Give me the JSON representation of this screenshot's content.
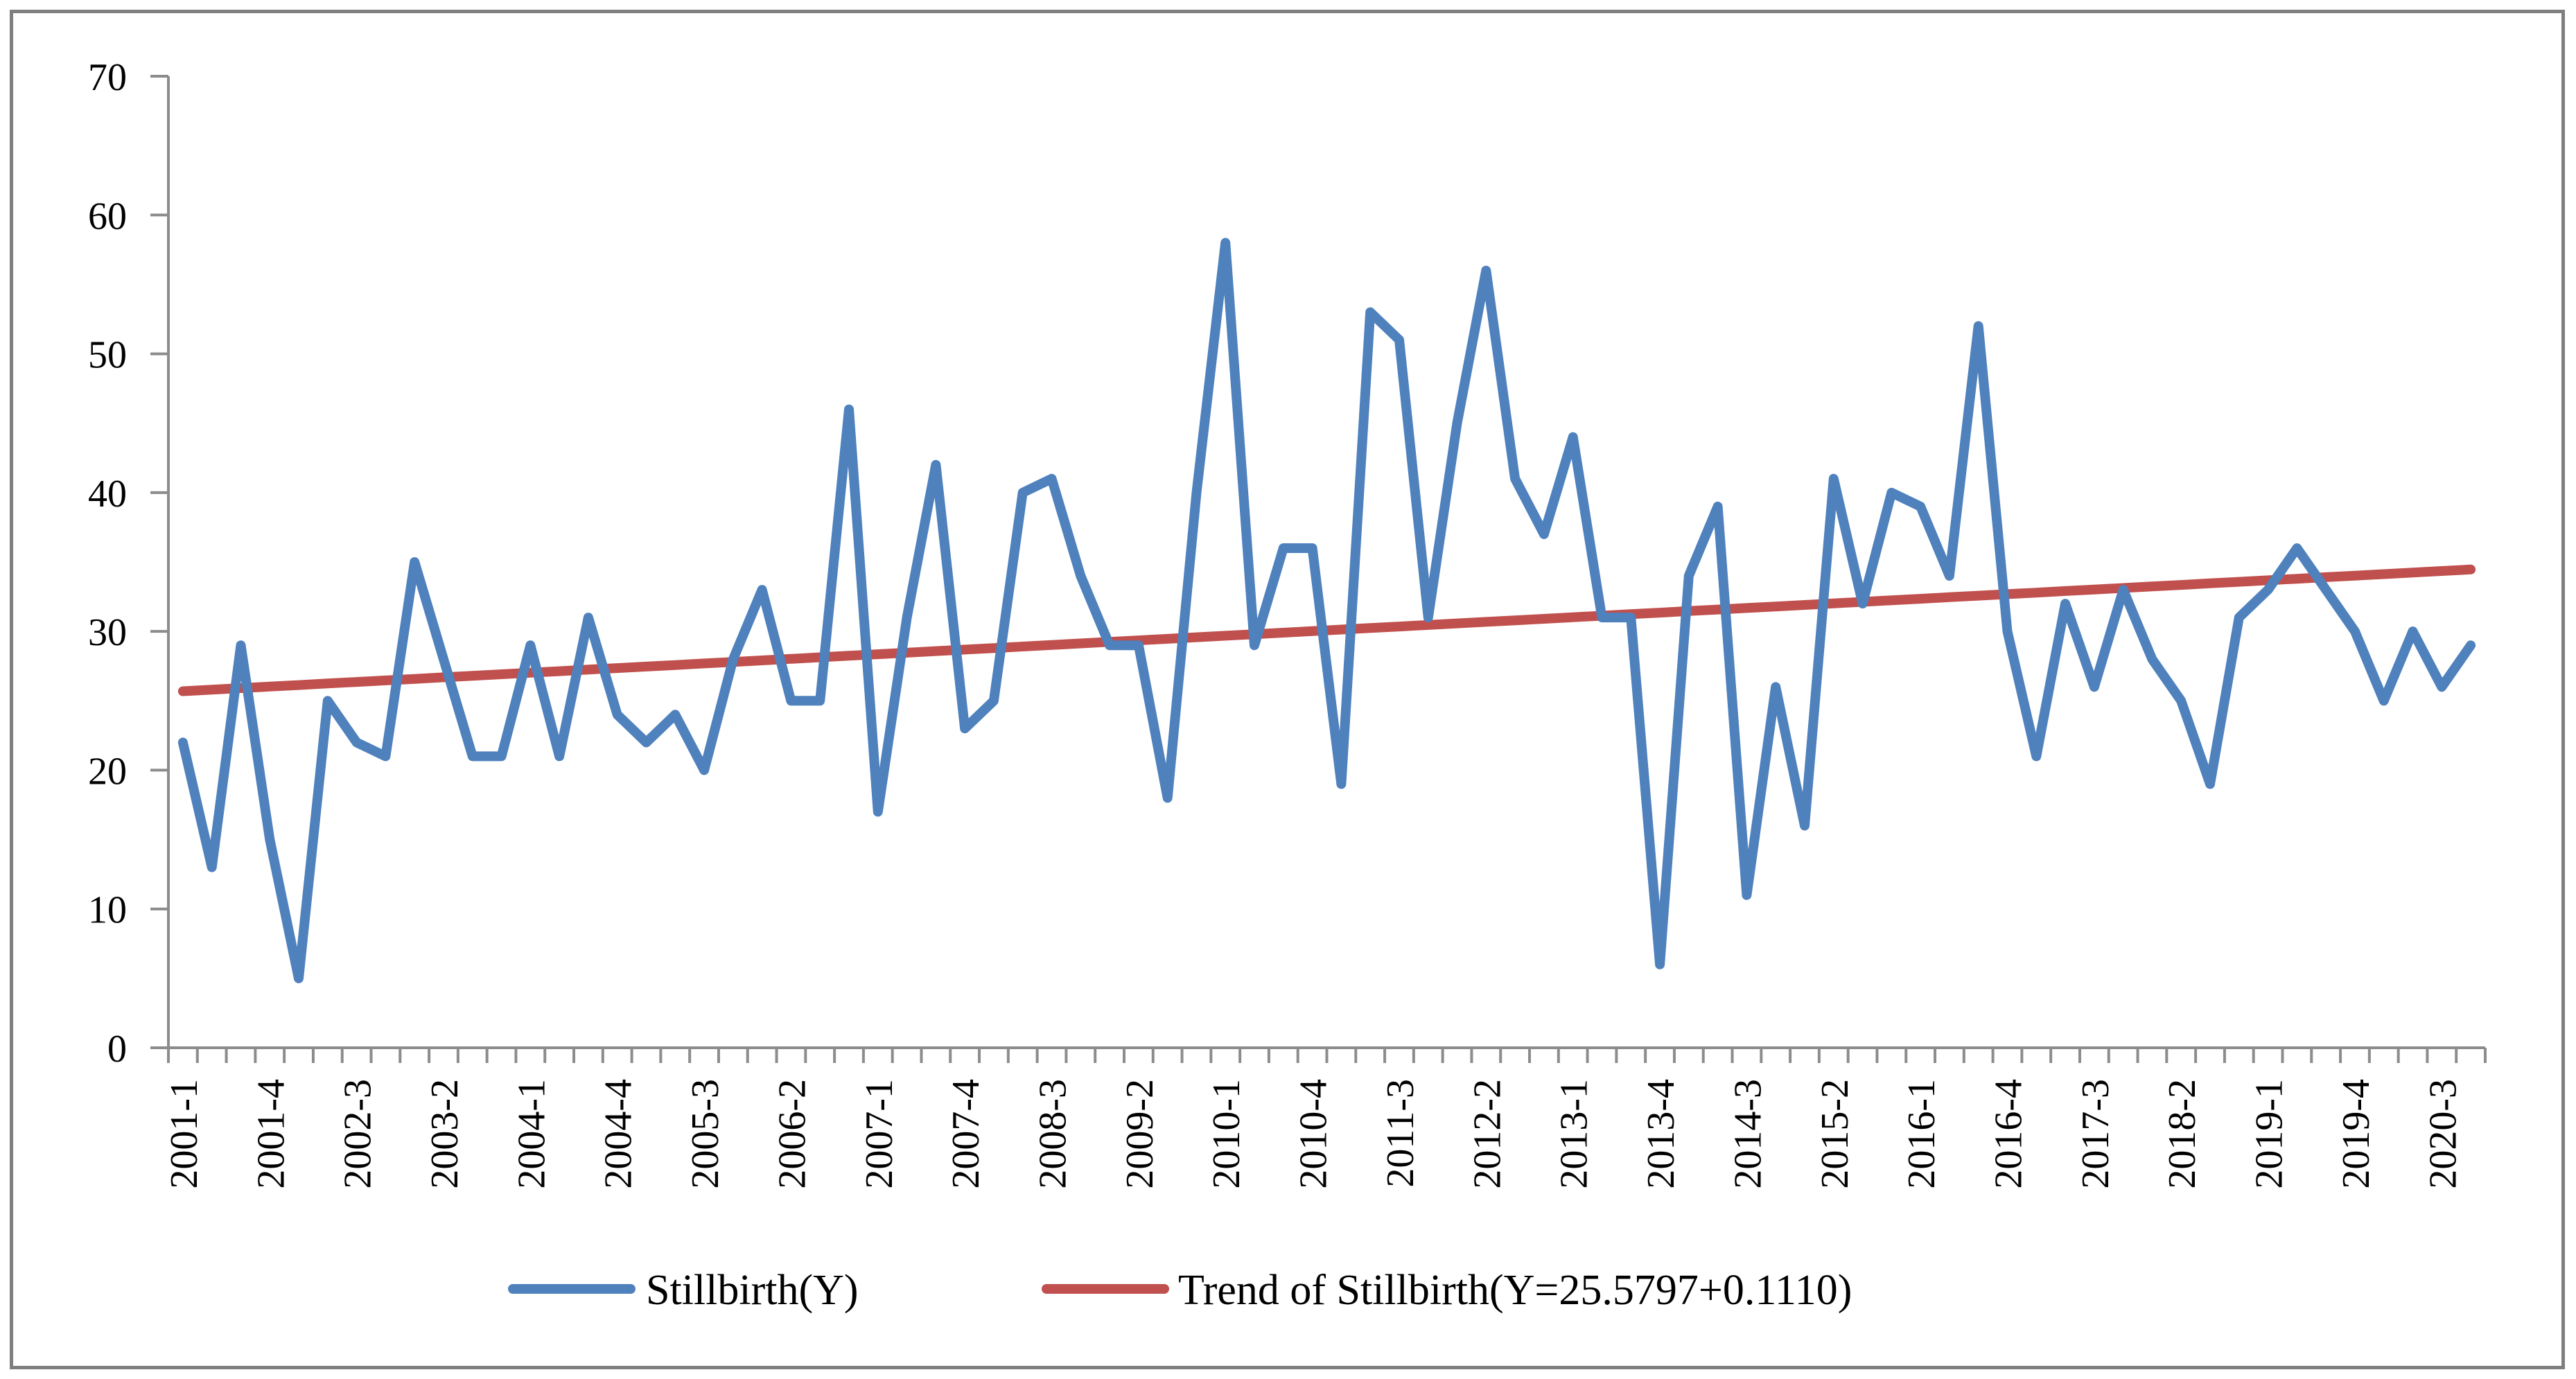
{
  "chart_data": {
    "type": "line",
    "title": "",
    "xlabel": "",
    "ylabel": "",
    "ylim": [
      0,
      70
    ],
    "yticks": [
      "0",
      "10",
      "20",
      "30",
      "40",
      "50",
      "60",
      "70"
    ],
    "categories": [
      "2001-1",
      "2001-2",
      "2001-3",
      "2001-4",
      "2002-1",
      "2002-2",
      "2002-3",
      "2002-4",
      "2003-1",
      "2003-2",
      "2003-3",
      "2003-4",
      "2004-1",
      "2004-2",
      "2004-3",
      "2004-4",
      "2005-1",
      "2005-2",
      "2005-3",
      "2005-4",
      "2006-1",
      "2006-2",
      "2006-3",
      "2006-4",
      "2007-1",
      "2007-2",
      "2007-3",
      "2007-4",
      "2008-1",
      "2008-2",
      "2008-3",
      "2008-4",
      "2009-1",
      "2009-2",
      "2009-3",
      "2009-4",
      "2010-1",
      "2010-2",
      "2010-3",
      "2010-4",
      "2011-1",
      "2011-2",
      "2011-3",
      "2011-4",
      "2012-1",
      "2012-2",
      "2012-3",
      "2012-4",
      "2013-1",
      "2013-2",
      "2013-3",
      "2013-4",
      "2014-1",
      "2014-2",
      "2014-3",
      "2014-4",
      "2015-1",
      "2015-2",
      "2015-3",
      "2015-4",
      "2016-1",
      "2016-2",
      "2016-3",
      "2016-4",
      "2017-1",
      "2017-2",
      "2017-3",
      "2017-4",
      "2018-1",
      "2018-2",
      "2018-3",
      "2018-4",
      "2019-1",
      "2019-2",
      "2019-3",
      "2019-4",
      "2020-1",
      "2020-2",
      "2020-3",
      "2020-4"
    ],
    "xtick_labels": [
      "2001-1",
      "2001-4",
      "2002-3",
      "2003-2",
      "2004-1",
      "2004-4",
      "2005-3",
      "2006-2",
      "2007-1",
      "2007-4",
      "2008-3",
      "2009-2",
      "2010-1",
      "2010-4",
      "2011-3",
      "2012-2",
      "2013-1",
      "2013-4",
      "2014-3",
      "2015-2",
      "2016-1",
      "2016-4",
      "2017-3",
      "2018-2",
      "2019-1",
      "2019-4",
      "2020-3"
    ],
    "series": [
      {
        "name": "Stillbirth(Y)",
        "color": "#4f81bd",
        "values": [
          22,
          13,
          29,
          15,
          5,
          25,
          22,
          21,
          35,
          28,
          21,
          21,
          29,
          21,
          31,
          24,
          22,
          24,
          20,
          28,
          33,
          25,
          25,
          46,
          17,
          31,
          42,
          23,
          25,
          40,
          41,
          34,
          29,
          29,
          18,
          40,
          58,
          29,
          36,
          36,
          19,
          53,
          51,
          31,
          45,
          56,
          41,
          37,
          44,
          31,
          31,
          6,
          34,
          39,
          11,
          26,
          16,
          41,
          32,
          40,
          39,
          34,
          52,
          30,
          21,
          32,
          26,
          33,
          28,
          25,
          19,
          31,
          33,
          36,
          33,
          30,
          25,
          30,
          26,
          29
        ]
      },
      {
        "name": "Trend of Stillbirth(Y=25.5797+0.1110)",
        "color": "#c0504d",
        "intercept": 25.5797,
        "slope": 0.111
      }
    ],
    "legend": {
      "position": "bottom",
      "items": [
        "Stillbirth(Y)",
        "Trend of Stillbirth(Y=25.5797+0.1110)"
      ]
    }
  }
}
